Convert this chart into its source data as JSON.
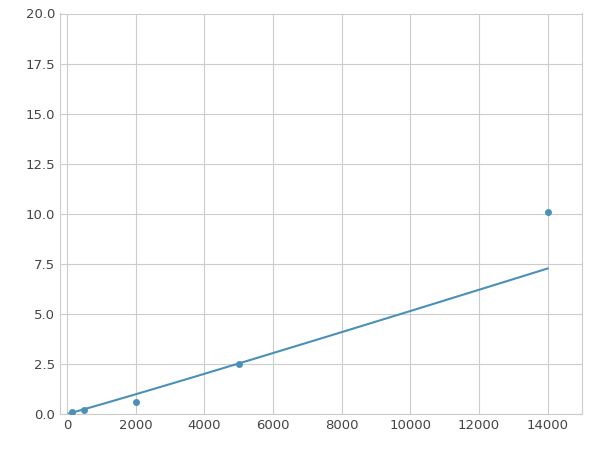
{
  "x_data": [
    156,
    500,
    2000,
    5000,
    14000
  ],
  "y_data": [
    0.1,
    0.2,
    0.6,
    2.5,
    10.1
  ],
  "line_color": "#4a90b8",
  "marker_color": "#4a90b8",
  "marker_size": 5,
  "line_width": 1.5,
  "xlim": [
    -200,
    15000
  ],
  "ylim": [
    0,
    20.0
  ],
  "xticks": [
    0,
    2000,
    4000,
    6000,
    8000,
    10000,
    12000,
    14000
  ],
  "yticks": [
    0.0,
    2.5,
    5.0,
    7.5,
    10.0,
    12.5,
    15.0,
    17.5,
    20.0
  ],
  "grid_color": "#cccccc",
  "background_color": "#ffffff",
  "tick_fontsize": 9.5
}
